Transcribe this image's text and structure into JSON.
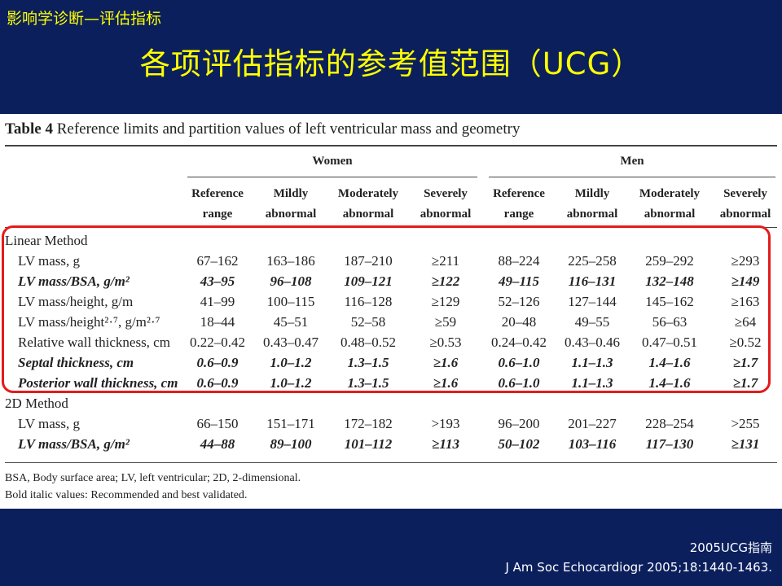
{
  "slide": {
    "top_caption": "影响学诊断—评估指标",
    "title": "各项评估指标的参考值范围（UCG）",
    "source_line1": "2005UCG指南",
    "source_line2": "J Am Soc Echocardiogr 2005;18:1440-1463."
  },
  "table": {
    "label": "Table 4",
    "caption": "Reference limits and partition values of left ventricular mass and geometry",
    "groups": [
      "Women",
      "Men"
    ],
    "columns": [
      {
        "line1": "Reference",
        "line2": "range"
      },
      {
        "line1": "Mildly",
        "line2": "abnormal"
      },
      {
        "line1": "Moderately",
        "line2": "abnormal"
      },
      {
        "line1": "Severely",
        "line2": "abnormal"
      },
      {
        "line1": "Reference",
        "line2": "range"
      },
      {
        "line1": "Mildly",
        "line2": "abnormal"
      },
      {
        "line1": "Moderately",
        "line2": "abnormal"
      },
      {
        "line1": "Severely",
        "line2": "abnormal"
      }
    ],
    "sections": [
      {
        "name": "Linear Method",
        "rows": [
          {
            "label": "LV mass, g",
            "bold_italic": false,
            "values": [
              "67–162",
              "163–186",
              "187–210",
              "≥211",
              "88–224",
              "225–258",
              "259–292",
              "≥293"
            ]
          },
          {
            "label": "LV mass/BSA, g/m²",
            "bold_italic": true,
            "values": [
              "43–95",
              "96–108",
              "109–121",
              "≥122",
              "49–115",
              "116–131",
              "132–148",
              "≥149"
            ]
          },
          {
            "label": "LV mass/height, g/m",
            "bold_italic": false,
            "values": [
              "41–99",
              "100–115",
              "116–128",
              "≥129",
              "52–126",
              "127–144",
              "145–162",
              "≥163"
            ]
          },
          {
            "label": "LV mass/height²·⁷, g/m²·⁷",
            "bold_italic": false,
            "values": [
              "18–44",
              "45–51",
              "52–58",
              "≥59",
              "20–48",
              "49–55",
              "56–63",
              "≥64"
            ]
          },
          {
            "label": "Relative wall thickness, cm",
            "bold_italic": false,
            "values": [
              "0.22–0.42",
              "0.43–0.47",
              "0.48–0.52",
              "≥0.53",
              "0.24–0.42",
              "0.43–0.46",
              "0.47–0.51",
              "≥0.52"
            ]
          },
          {
            "label": "Septal thickness, cm",
            "bold_italic": true,
            "values": [
              "0.6–0.9",
              "1.0–1.2",
              "1.3–1.5",
              "≥1.6",
              "0.6–1.0",
              "1.1–1.3",
              "1.4–1.6",
              "≥1.7"
            ]
          },
          {
            "label": "Posterior wall thickness, cm",
            "bold_italic": true,
            "values": [
              "0.6–0.9",
              "1.0–1.2",
              "1.3–1.5",
              "≥1.6",
              "0.6–1.0",
              "1.1–1.3",
              "1.4–1.6",
              "≥1.7"
            ]
          }
        ]
      },
      {
        "name": "2D Method",
        "rows": [
          {
            "label": "LV mass, g",
            "bold_italic": false,
            "values": [
              "66–150",
              "151–171",
              "172–182",
              ">193",
              "96–200",
              "201–227",
              "228–254",
              ">255"
            ]
          },
          {
            "label": "LV mass/BSA, g/m²",
            "bold_italic": true,
            "values": [
              "44–88",
              "89–100",
              "101–112",
              "≥113",
              "50–102",
              "103–116",
              "117–130",
              "≥131"
            ]
          }
        ]
      }
    ],
    "footnotes": [
      "BSA, Body surface area; LV, left ventricular; 2D, 2-dimensional.",
      "Bold italic values: Recommended and best validated."
    ],
    "highlight_color": "#e41b1b"
  }
}
